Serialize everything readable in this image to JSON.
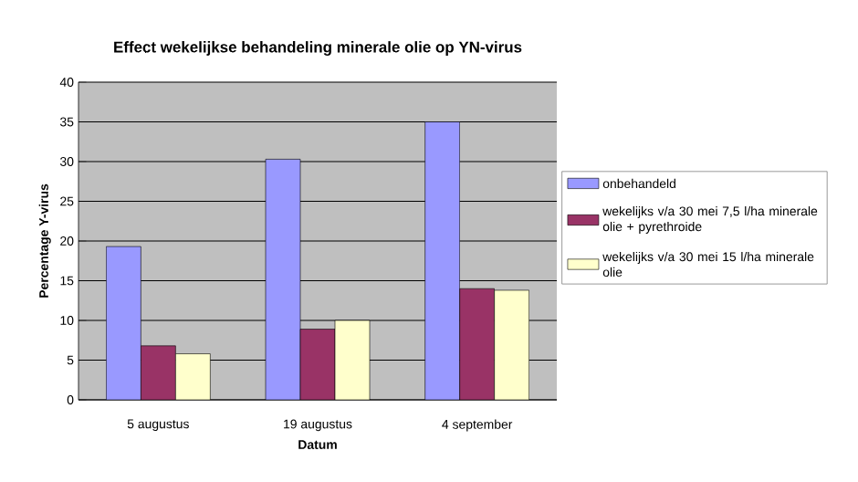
{
  "chart_data": {
    "type": "bar",
    "title": "Effect wekelijkse behandeling minerale olie op YN-virus",
    "xlabel": "Datum",
    "ylabel": "Percentage Y-virus",
    "categories": [
      "5 augustus",
      "19 augustus",
      "4 september"
    ],
    "series": [
      {
        "name": "onbehandeld",
        "color": "#9999ff",
        "values": [
          19.3,
          30.3,
          35
        ]
      },
      {
        "name": "wekelijks v/a 30 mei 7,5 l/ha minerale olie + pyrethroide",
        "color": "#993366",
        "values": [
          6.8,
          8.9,
          14
        ]
      },
      {
        "name": "wekelijks v/a 30 mei 15 l/ha minerale olie",
        "color": "#ffffcc",
        "values": [
          5.8,
          10,
          13.8
        ]
      }
    ],
    "ylim": [
      0,
      40
    ],
    "yticks": [
      0,
      5,
      10,
      15,
      20,
      25,
      30,
      35,
      40
    ],
    "grid": "y",
    "legend": "right"
  }
}
